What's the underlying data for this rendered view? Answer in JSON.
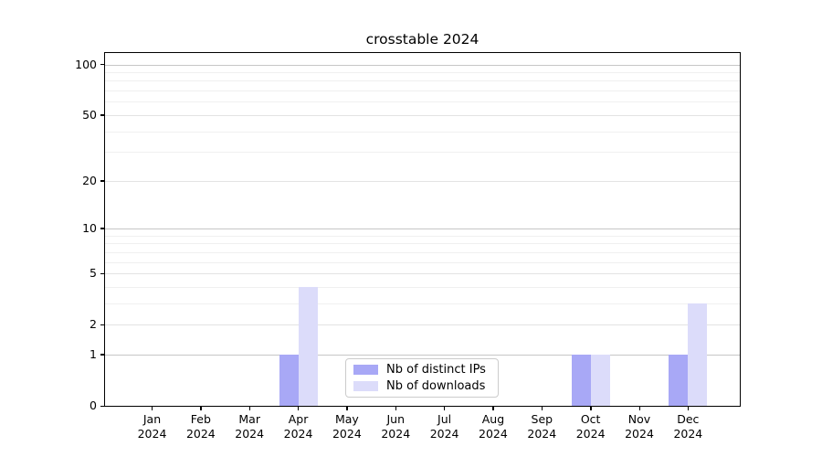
{
  "chart_data": {
    "type": "bar",
    "title": "crosstable 2024",
    "x_months": [
      "Jan",
      "Feb",
      "Mar",
      "Apr",
      "May",
      "Jun",
      "Jul",
      "Aug",
      "Sep",
      "Oct",
      "Nov",
      "Dec"
    ],
    "x_year": "2024",
    "series": [
      {
        "name": "Nb of distinct IPs",
        "color": "#a8a8f6",
        "values": [
          0,
          0,
          0,
          1,
          0,
          0,
          0,
          0,
          0,
          1,
          0,
          1
        ]
      },
      {
        "name": "Nb of downloads",
        "color": "#dcdcfa",
        "values": [
          0,
          0,
          0,
          4,
          0,
          0,
          0,
          0,
          0,
          1,
          0,
          3
        ]
      }
    ],
    "y_scale": "log1p",
    "y_axis_top": 117,
    "y_ticks": [
      0,
      1,
      2,
      5,
      10,
      20,
      50,
      100
    ],
    "y_major_gridlines": [
      1,
      10,
      100
    ],
    "y_mid_gridlines": [
      2,
      5,
      20,
      50
    ],
    "y_minor_gridlines": [
      3,
      4,
      6,
      7,
      8,
      9,
      30,
      40,
      60,
      70,
      80,
      90
    ],
    "grid": true,
    "legend_position": "lower center"
  }
}
